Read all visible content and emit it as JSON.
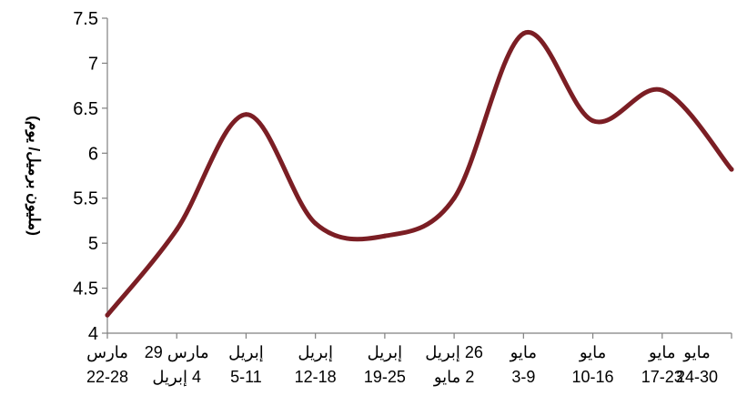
{
  "chart_data": {
    "type": "line",
    "ylabel": "(مليون برميل/ يوم)",
    "ylim": [
      4,
      7.5
    ],
    "yticks": [
      "4",
      "4.5",
      "5",
      "5.5",
      "6",
      "6.5",
      "7",
      "7.5"
    ],
    "categories": [
      [
        "مارس",
        "22-28"
      ],
      [
        "مارس 29",
        "4 إبريل"
      ],
      [
        "إبريل",
        "5-11"
      ],
      [
        "إبريل",
        "12-18"
      ],
      [
        "إبريل",
        "19-25"
      ],
      [
        "26 إبريل",
        "2 مايو"
      ],
      [
        "مايو",
        "3-9"
      ],
      [
        "مايو",
        "10-16"
      ],
      [
        "مايو",
        "17-23"
      ],
      [
        "مايو",
        "24-30"
      ]
    ],
    "series": [
      {
        "values": [
          4.2,
          5.15,
          6.43,
          5.22,
          5.08,
          5.5,
          7.33,
          6.36,
          6.7,
          5.82
        ]
      }
    ],
    "colors": {
      "line": "#7b1e24",
      "axis": "#808080"
    },
    "grid": false,
    "legend": "none"
  }
}
